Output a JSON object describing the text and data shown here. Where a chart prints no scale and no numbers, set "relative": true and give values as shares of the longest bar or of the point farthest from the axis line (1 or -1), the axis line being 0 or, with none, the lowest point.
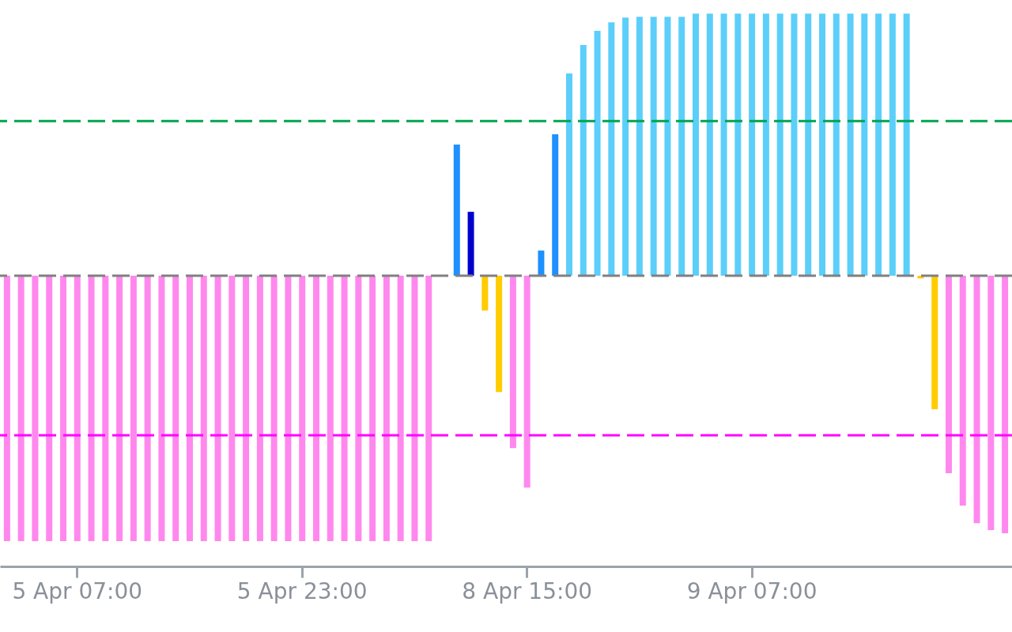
{
  "chart_data": {
    "type": "bar",
    "relative": true,
    "tick_labels": "x",
    "grid": false,
    "categories": [
      null,
      null,
      null,
      null,
      null,
      "5 Apr 07:00",
      null,
      null,
      null,
      null,
      null,
      null,
      null,
      null,
      null,
      null,
      null,
      null,
      null,
      null,
      null,
      "5 Apr 23:00",
      null,
      null,
      null,
      null,
      null,
      null,
      null,
      null,
      null,
      null,
      null,
      null,
      null,
      null,
      null,
      "8 Apr 15:00",
      null,
      null,
      null,
      null,
      null,
      null,
      null,
      null,
      null,
      null,
      null,
      null,
      null,
      null,
      null,
      "9 Apr 07:00",
      null,
      null,
      null,
      null,
      null,
      null,
      null,
      null,
      null,
      null,
      null,
      null,
      null,
      null,
      null,
      null,
      null,
      null
    ],
    "values": [
      -1,
      -1,
      -1,
      -1,
      -1,
      -1,
      -1,
      -1,
      -1,
      -1,
      -1,
      -1,
      -1,
      -1,
      -1,
      -1,
      -1,
      -1,
      -1,
      -1,
      -1,
      -1,
      -1,
      -1,
      -1,
      -1,
      -1,
      -1,
      -1,
      -1,
      -1,
      null,
      0.494,
      0.241,
      -0.131,
      -0.438,
      -0.649,
      -0.798,
      0.095,
      0.533,
      0.762,
      0.869,
      0.923,
      0.955,
      0.973,
      0.976,
      0.976,
      0.976,
      0.976,
      0.988,
      0.988,
      0.988,
      0.988,
      0.988,
      0.988,
      0.988,
      0.988,
      0.988,
      0.988,
      0.988,
      0.988,
      0.988,
      0.988,
      0.988,
      0.988,
      -0.01,
      -0.503,
      -0.744,
      -0.866,
      -0.932,
      -0.958,
      -0.97
    ],
    "colors": [
      "#ff88ee",
      "#ff88ee",
      "#ff88ee",
      "#ff88ee",
      "#ff88ee",
      "#ff88ee",
      "#ff88ee",
      "#ff88ee",
      "#ff88ee",
      "#ff88ee",
      "#ff88ee",
      "#ff88ee",
      "#ff88ee",
      "#ff88ee",
      "#ff88ee",
      "#ff88ee",
      "#ff88ee",
      "#ff88ee",
      "#ff88ee",
      "#ff88ee",
      "#ff88ee",
      "#ff88ee",
      "#ff88ee",
      "#ff88ee",
      "#ff88ee",
      "#ff88ee",
      "#ff88ee",
      "#ff88ee",
      "#ff88ee",
      "#ff88ee",
      "#ff88ee",
      null,
      "#1e90ff",
      "#0000cd",
      "#ffcc00",
      "#ffcc00",
      "#ff88ee",
      "#ff88ee",
      "#1e90ff",
      "#1e90ff",
      "#5bcffa",
      "#5bcffa",
      "#5bcffa",
      "#5bcffa",
      "#5bcffa",
      "#5bcffa",
      "#5bcffa",
      "#5bcffa",
      "#5bcffa",
      "#5bcffa",
      "#5bcffa",
      "#5bcffa",
      "#5bcffa",
      "#5bcffa",
      "#5bcffa",
      "#5bcffa",
      "#5bcffa",
      "#5bcffa",
      "#5bcffa",
      "#5bcffa",
      "#5bcffa",
      "#5bcffa",
      "#5bcffa",
      "#5bcffa",
      "#5bcffa",
      "#ffcc00",
      "#ffcc00",
      "#ff88ee",
      "#ff88ee",
      "#ff88ee",
      "#ff88ee",
      "#ff88ee"
    ],
    "ref_lines": [
      {
        "axis": "y",
        "value": 0.583,
        "color": "#00a550",
        "line_style": "dashed"
      },
      {
        "axis": "y",
        "value": 0,
        "color": "#808080",
        "line_style": "dashed"
      },
      {
        "axis": "y",
        "value": -0.601,
        "color": "#ff00ff",
        "line_style": "dashed"
      }
    ]
  }
}
